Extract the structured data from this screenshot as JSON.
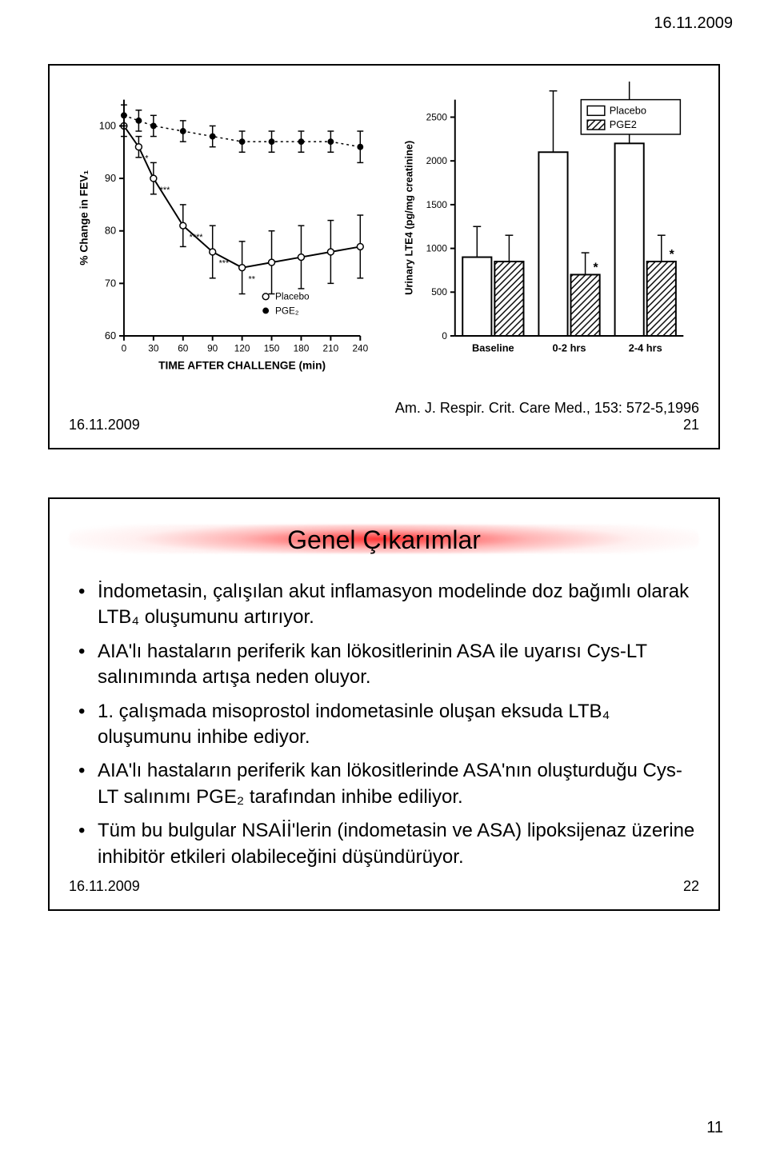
{
  "header_date": "16.11.2009",
  "page_number": "11",
  "slide1": {
    "footer_date": "16.11.2009",
    "citation": "Am. J. Respir. Crit. Care Med., 153: 572-5,1996",
    "slide_number": "21",
    "chart_left": {
      "type": "line-errorbar",
      "xlabel": "TIME AFTER CHALLENGE (min)",
      "ylabel": "% Change in FEV₁",
      "xlim": [
        0,
        240
      ],
      "ylim": [
        60,
        105
      ],
      "xticks": [
        0,
        30,
        60,
        90,
        120,
        150,
        180,
        210,
        240
      ],
      "yticks": [
        60,
        70,
        80,
        90,
        100
      ],
      "gridlines": false,
      "bg": "#ffffff",
      "axis_color": "#000000",
      "label_fontsize": 12,
      "tick_fontsize": 10,
      "legend_items": [
        {
          "marker": "open-circle",
          "label": "Placebo"
        },
        {
          "marker": "filled-circle",
          "label": "PGE₂"
        }
      ],
      "series": [
        {
          "name": "Placebo",
          "marker": "open-circle",
          "color": "#000000",
          "linewidth": 2,
          "x": [
            0,
            15,
            30,
            60,
            90,
            120,
            150,
            180,
            210,
            240
          ],
          "y": [
            100,
            96,
            90,
            81,
            76,
            73,
            74,
            75,
            76,
            77
          ],
          "err": [
            2,
            2,
            3,
            4,
            5,
            5,
            6,
            6,
            6,
            6
          ],
          "sig": [
            "",
            "*",
            "***",
            "****",
            "***",
            "**",
            "",
            "",
            "",
            ""
          ]
        },
        {
          "name": "PGE2",
          "marker": "filled-circle",
          "color": "#000000",
          "linewidth": 1.5,
          "linestyle": "dashed",
          "x": [
            0,
            15,
            30,
            60,
            90,
            120,
            150,
            180,
            210,
            240
          ],
          "y": [
            102,
            101,
            100,
            99,
            98,
            97,
            97,
            97,
            97,
            96
          ],
          "err": [
            2,
            2,
            2,
            2,
            2,
            2,
            2,
            2,
            2,
            3
          ],
          "sig": [
            "",
            "",
            "",
            "",
            "",
            "",
            "",
            "",
            "",
            ""
          ]
        }
      ]
    },
    "chart_right": {
      "type": "bar-errorbar",
      "ylabel": "Urinary LTE4 (pg/mg creatinine)",
      "xlabels": [
        "Baseline",
        "0-2 hrs",
        "2-4 hrs"
      ],
      "ylim": [
        0,
        2700
      ],
      "yticks": [
        0,
        500,
        1000,
        1500,
        2000,
        2500
      ],
      "bg": "#ffffff",
      "axis_color": "#000000",
      "label_fontsize": 12,
      "tick_fontsize": 10,
      "bar_border": "#000000",
      "bar_border_width": 2,
      "bar_width": 0.38,
      "legend_items": [
        {
          "fill": "open",
          "label": "Placebo"
        },
        {
          "fill": "hatch",
          "label": "PGE2"
        }
      ],
      "groups": [
        {
          "label": "Baseline",
          "placebo": {
            "value": 900,
            "err": 350,
            "sig": ""
          },
          "pge2": {
            "value": 850,
            "err": 300,
            "sig": ""
          }
        },
        {
          "label": "0-2 hrs",
          "placebo": {
            "value": 2100,
            "err": 700,
            "sig": ""
          },
          "pge2": {
            "value": 700,
            "err": 250,
            "sig": "*"
          }
        },
        {
          "label": "2-4 hrs",
          "placebo": {
            "value": 2200,
            "err": 800,
            "sig": ""
          },
          "pge2": {
            "value": 850,
            "err": 300,
            "sig": "*"
          }
        }
      ]
    }
  },
  "slide2": {
    "title": "Genel Çıkarımlar",
    "footer_date": "16.11.2009",
    "slide_number": "22",
    "bullets": [
      "İndometasin, çalışılan akut inflamasyon modelinde doz bağımlı olarak LTB₄ oluşumunu artırıyor.",
      "AIA'lı hastaların periferik kan lökositlerinin ASA ile  uyarısı Cys-LT salınımında artışa neden oluyor.",
      "1. çalışmada misoprostol indometasinle oluşan eksuda LTB₄ oluşumunu inhibe ediyor.",
      "AIA'lı hastaların  periferik kan lökositlerinde ASA'nın oluşturduğu  Cys-LT salınımı PGE₂ tarafından inhibe ediliyor.",
      "Tüm bu bulgular NSAİİ'lerin (indometasin ve ASA) lipoksijenaz üzerine inhibitör etkileri olabileceğini düşündürüyor."
    ]
  }
}
